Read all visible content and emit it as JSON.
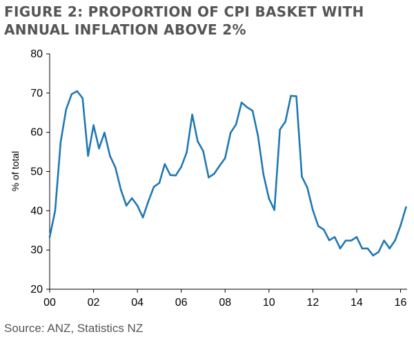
{
  "header": {
    "title_line1": "FIGURE 2: PROPORTION OF CPI BASKET WITH",
    "title_line2": "ANNUAL INFLATION ABOVE 2%"
  },
  "footer": {
    "source": "Source: ANZ, Statistics NZ"
  },
  "colors": {
    "line": "#1f77b4",
    "axis": "#000000"
  },
  "chart_data": {
    "type": "line",
    "title": "FIGURE 2: PROPORTION OF CPI BASKET WITH ANNUAL INFLATION ABOVE 2%",
    "xlabel": "",
    "ylabel": "% of total",
    "xlim": [
      2000,
      2016.3
    ],
    "ylim": [
      20,
      80
    ],
    "yticks": [
      20,
      30,
      40,
      50,
      60,
      70,
      80
    ],
    "xticks": [
      {
        "value": 2000,
        "label": "00"
      },
      {
        "value": 2002,
        "label": "02"
      },
      {
        "value": 2004,
        "label": "04"
      },
      {
        "value": 2006,
        "label": "06"
      },
      {
        "value": 2008,
        "label": "08"
      },
      {
        "value": 2010,
        "label": "10"
      },
      {
        "value": 2012,
        "label": "12"
      },
      {
        "value": 2014,
        "label": "14"
      },
      {
        "value": 2016,
        "label": "16"
      }
    ],
    "grid": false,
    "series": [
      {
        "x": [
          2000.0,
          2000.25,
          2000.5,
          2000.75,
          2001.0,
          2001.25,
          2001.5,
          2001.75,
          2002.0,
          2002.25,
          2002.5,
          2002.75,
          2003.0,
          2003.25,
          2003.5,
          2003.75,
          2004.0,
          2004.25,
          2004.5,
          2004.75,
          2005.0,
          2005.25,
          2005.5,
          2005.75,
          2006.0,
          2006.25,
          2006.5,
          2006.75,
          2007.0,
          2007.25,
          2007.5,
          2007.75,
          2008.0,
          2008.25,
          2008.5,
          2008.75,
          2009.0,
          2009.25,
          2009.5,
          2009.75,
          2010.0,
          2010.25,
          2010.5,
          2010.75,
          2011.0,
          2011.25,
          2011.5,
          2011.75,
          2012.0,
          2012.25,
          2012.5,
          2012.75,
          2013.0,
          2013.25,
          2013.5,
          2013.75,
          2014.0,
          2014.25,
          2014.5,
          2014.75,
          2015.0,
          2015.25,
          2015.5,
          2015.75,
          2016.0,
          2016.25
        ],
        "values": [
          33.3,
          40.0,
          57.5,
          65.8,
          69.7,
          70.5,
          68.7,
          54.0,
          61.8,
          55.9,
          59.9,
          54.0,
          51.0,
          45.3,
          41.3,
          43.2,
          41.3,
          38.3,
          42.4,
          46.1,
          47.1,
          51.9,
          49.1,
          49.0,
          51.2,
          54.9,
          64.5,
          57.7,
          55.2,
          48.5,
          49.4,
          51.5,
          53.4,
          59.9,
          62.0,
          67.6,
          66.4,
          65.5,
          59.1,
          49.3,
          43.1,
          40.2,
          60.7,
          62.7,
          69.3,
          69.2,
          48.7,
          45.9,
          40.2,
          36.1,
          35.2,
          32.5,
          33.3,
          30.4,
          32.4,
          32.4,
          33.3,
          30.4,
          30.4,
          28.6,
          29.5,
          32.4,
          30.4,
          32.4,
          36.2,
          40.9
        ]
      }
    ]
  }
}
